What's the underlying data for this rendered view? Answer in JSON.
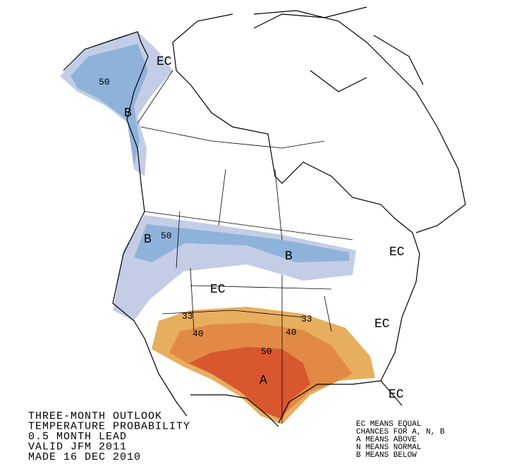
{
  "title_lines": [
    "THREE-MONTH OUTLOOK",
    "TEMPERATURE PROBABILITY",
    "0.5 MONTH LEAD",
    "VALID JFM 2011",
    "MADE 16 DEC 2010"
  ],
  "legend_lines": [
    "EC MEANS EQUAL",
    "CHANCES FOR A, N, B",
    "A MEANS ABOVE",
    "N MEANS NORMAL",
    "B MEANS BELOW"
  ],
  "map_labels": [
    "EC",
    "50",
    "B",
    "B",
    "50",
    "B",
    "EC",
    "EC",
    "33",
    "33",
    "40",
    "40",
    "50",
    "A",
    "EC",
    "EC"
  ]
}
